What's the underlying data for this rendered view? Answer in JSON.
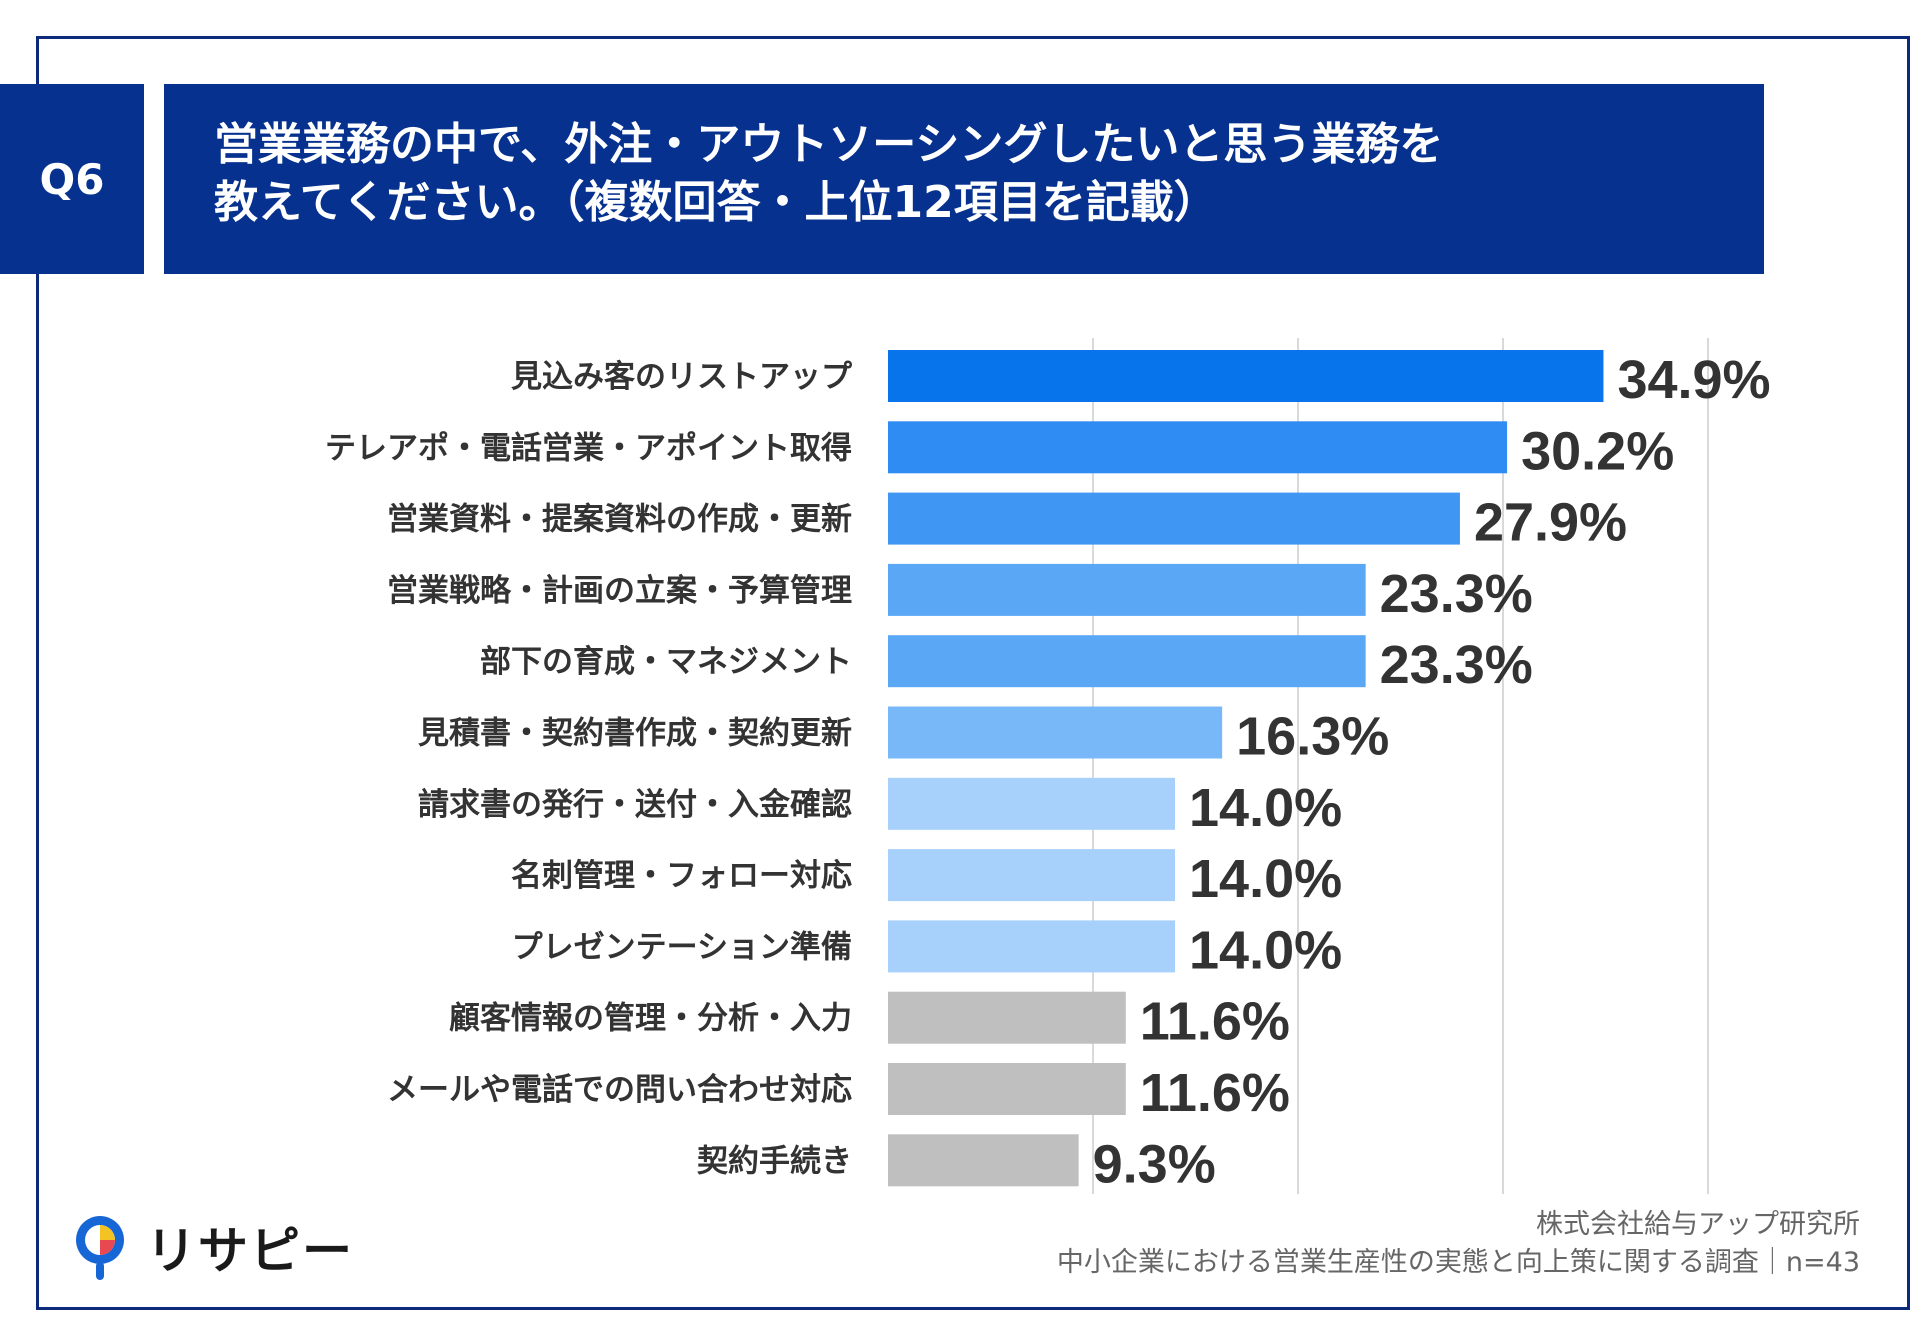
{
  "header": {
    "q_label": "Q6",
    "title_line1": "営業業務の中で、外注・アウトソーシングしたいと思う業務を",
    "title_line2": "教えてください。（複数回答・上位12項目を記載）"
  },
  "footer": {
    "company": "株式会社給与アップ研究所",
    "survey": "中小企業における営業生産性の実態と向上策に関する調査｜n=43"
  },
  "logo": {
    "text": "リサピー"
  },
  "colors": {
    "frame": "#0d2a7a",
    "header_bg": "#06318f",
    "grid": "#d9d9d9",
    "label": "#333333"
  },
  "chart_data": {
    "type": "bar",
    "orientation": "horizontal",
    "title": "営業業務の中で、外注・アウトソーシングしたいと思う業務を教えてください。（複数回答・上位12項目を記載）",
    "xlabel": "",
    "ylabel": "",
    "xlim": [
      0,
      40
    ],
    "grid": true,
    "value_suffix": "%",
    "categories": [
      "見込み客のリストアップ",
      "テレアポ・電話営業・アポイント取得",
      "営業資料・提案資料の作成・更新",
      "営業戦略・計画の立案・予算管理",
      "部下の育成・マネジメント",
      "見積書・契約書作成・契約更新",
      "請求書の発行・送付・入金確認",
      "名刺管理・フォロー対応",
      "プレゼンテーション準備",
      "顧客情報の管理・分析・入力",
      "メールや電話での問い合わせ対応",
      "契約手続き"
    ],
    "values": [
      34.9,
      30.2,
      27.9,
      23.3,
      23.3,
      16.3,
      14.0,
      14.0,
      14.0,
      11.6,
      11.6,
      9.3
    ],
    "value_labels": [
      "34.9%",
      "30.2%",
      "27.9%",
      "23.3%",
      "23.3%",
      "16.3%",
      "14.0%",
      "14.0%",
      "14.0%",
      "11.6%",
      "11.6%",
      "9.3%"
    ],
    "bar_colors": [
      "#0874ec",
      "#2f8cf2",
      "#3f97f3",
      "#5aa7f6",
      "#5aa7f6",
      "#79b8f8",
      "#a7d0fb",
      "#a7d0fb",
      "#a7d0fb",
      "#bfbfbf",
      "#bfbfbf",
      "#bfbfbf"
    ]
  }
}
